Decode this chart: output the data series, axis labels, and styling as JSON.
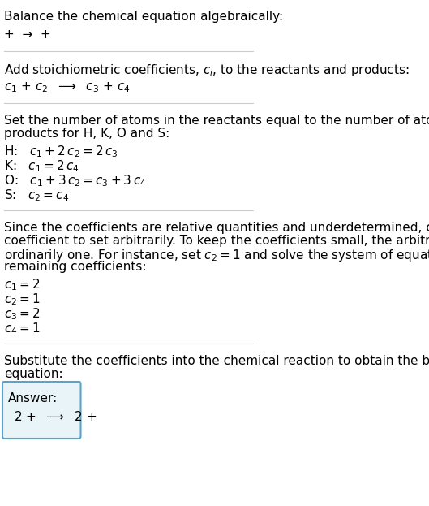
{
  "bg_color": "#ffffff",
  "text_color": "#000000",
  "line_color": "#cccccc",
  "title_text": "Balance the chemical equation algebraically:",
  "section1_line1": "+ ➶ +",
  "section2_header": "Add stoichiometric coefficients, $c_i$, to the reactants and products:",
  "section2_line1": "$c_1$ + $c_2$  ➶  $c_3$ + $c_4$",
  "section3_header": "Set the number of atoms in the reactants equal to the number of atoms in the\nproducts for H, K, O and S:",
  "section3_lines": [
    "H:   $c_1 + 2\\,c_2 = 2\\,c_3$",
    "K:   $c_1 = 2\\,c_4$",
    "O:   $c_1 + 3\\,c_2 = c_3 + 3\\,c_4$",
    "S:   $c_2 = c_4$"
  ],
  "section4_header": "Since the coefficients are relative quantities and underdetermined, choose a\ncoefficient to set arbitrarily. To keep the coefficients small, the arbitrary value is\nordinarily one. For instance, set $c_2 = 1$ and solve the system of equations for the\nremaining coefficients:",
  "section4_lines": [
    "$c_1 = 2$",
    "$c_2 = 1$",
    "$c_3 = 2$",
    "$c_4 = 1$"
  ],
  "section5_header": "Substitute the coefficients into the chemical reaction to obtain the balanced\nequation:",
  "answer_label": "Answer:",
  "answer_line": "2 +  ➶  2 +",
  "answer_box_color": "#e8f4f8",
  "answer_box_border": "#5ba3c9",
  "font_size_title": 11,
  "font_size_body": 11,
  "font_size_math": 11
}
